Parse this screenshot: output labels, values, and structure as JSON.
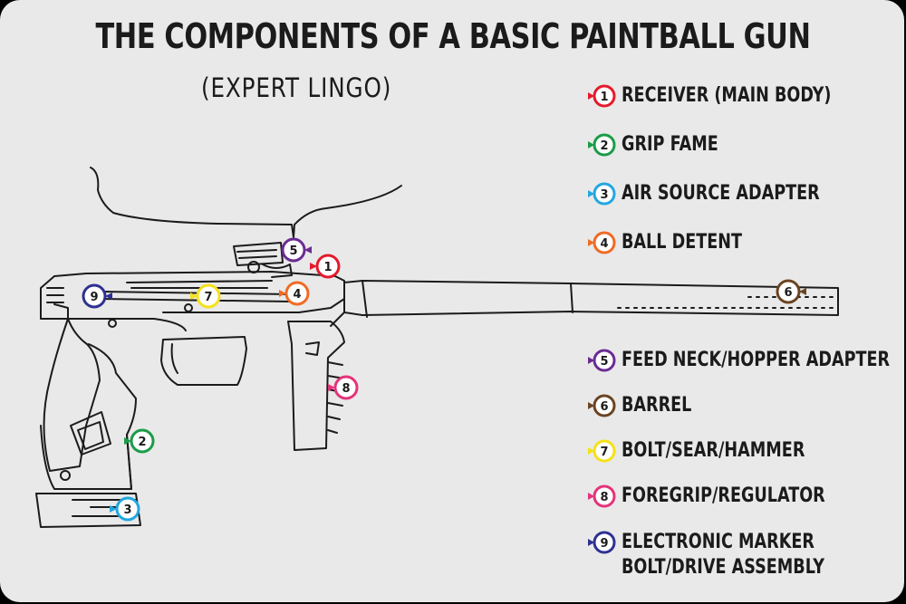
{
  "title": "THE COMPONENTS OF A BASIC PAINTBALL GUN",
  "subtitle": "(EXPERT LINGO)",
  "legend": [
    {
      "num": "1",
      "label": "RECEIVER (MAIN BODY)",
      "color": "#e31b2c"
    },
    {
      "num": "2",
      "label": "GRIP FAME",
      "color": "#1a9c47"
    },
    {
      "num": "3",
      "label": "AIR SOURCE ADAPTER",
      "color": "#22a7e0"
    },
    {
      "num": "4",
      "label": "BALL DETENT",
      "color": "#ef6b25"
    },
    {
      "num": "5",
      "label": "FEED NECK/HOPPER ADAPTER",
      "color": "#6a2c91"
    },
    {
      "num": "6",
      "label": "BARREL",
      "color": "#6b4423"
    },
    {
      "num": "7",
      "label": "BOLT/SEAR/HAMMER",
      "color": "#f5e11a"
    },
    {
      "num": "8",
      "label": "FOREGRIP/REGULATOR",
      "color": "#e4337a"
    },
    {
      "num": "9",
      "label": "ELECTRONIC MARKER",
      "label2": "BOLT/DRIVE ASSEMBLY",
      "color": "#2e3192"
    }
  ]
}
